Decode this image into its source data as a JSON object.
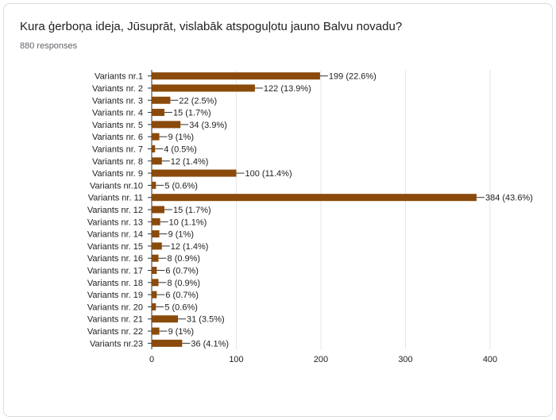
{
  "question": "Kura ģerboņa ideja, Jūsuprāt, vislabāk atspoguļotu jauno Balvu novadu?",
  "responses_label": "880 responses",
  "colors": {
    "bar": "#8a4a0b",
    "grid": "#e6e6e6",
    "axis": "#333333",
    "text": "#222222"
  },
  "chart_data": {
    "type": "bar",
    "orientation": "horizontal",
    "title": "",
    "xlabel": "",
    "ylabel": "",
    "xlim": [
      0,
      400
    ],
    "xticks": [
      0,
      100,
      200,
      300,
      400
    ],
    "grid": true,
    "categories": [
      "Variants nr.1",
      "Variants nr. 2",
      "Variants nr. 3",
      "Variants nr. 4",
      "Variants nr. 5",
      "Variants nr. 6",
      "Variants nr. 7",
      "Variants nr. 8",
      "Variants nr. 9",
      "Variants nr.10",
      "Variants nr. 11",
      "Variants nr. 12",
      "Variants nr. 13",
      "Variants nr. 14",
      "Variants nr. 15",
      "Variants nr. 16",
      "Variants nr. 17",
      "Variants nr. 18",
      "Variants nr. 19",
      "Variants nr. 20",
      "Variants nr. 21",
      "Variants nr. 22",
      "Variants nr.23"
    ],
    "values": [
      199,
      122,
      22,
      15,
      34,
      9,
      4,
      12,
      100,
      5,
      384,
      15,
      10,
      9,
      12,
      8,
      6,
      8,
      6,
      5,
      31,
      9,
      36
    ],
    "data_labels": [
      "199 (22.6%)",
      "122 (13.9%)",
      "22 (2.5%)",
      "15 (1.7%)",
      "34 (3.9%)",
      "9 (1%)",
      "4 (0.5%)",
      "12 (1.4%)",
      "100 (11.4%)",
      "5 (0.6%)",
      "384 (43.6%)",
      "15 (1.7%)",
      "10 (1.1%)",
      "9 (1%)",
      "12 (1.4%)",
      "8 (0.9%)",
      "6 (0.7%)",
      "8 (0.9%)",
      "6 (0.7%)",
      "5 (0.6%)",
      "31 (3.5%)",
      "9 (1%)",
      "36 (4.1%)"
    ]
  }
}
